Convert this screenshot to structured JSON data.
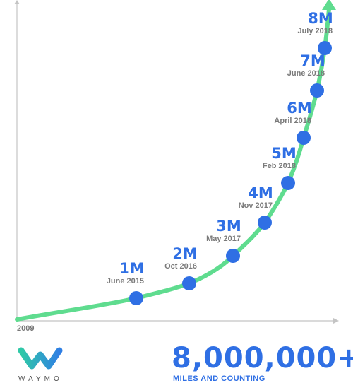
{
  "chart_data": {
    "type": "line",
    "x_origin_label": "2009",
    "points": [
      {
        "value_label": "1M",
        "date": "June 2015",
        "miles_millions": 1
      },
      {
        "value_label": "2M",
        "date": "Oct 2016",
        "miles_millions": 2
      },
      {
        "value_label": "3M",
        "date": "May 2017",
        "miles_millions": 3
      },
      {
        "value_label": "4M",
        "date": "Nov 2017",
        "miles_millions": 4
      },
      {
        "value_label": "5M",
        "date": "Feb 2018",
        "miles_millions": 5
      },
      {
        "value_label": "6M",
        "date": "April 2018",
        "miles_millions": 6
      },
      {
        "value_label": "7M",
        "date": "June 2018",
        "miles_millions": 7
      },
      {
        "value_label": "8M",
        "date": "July 2018",
        "miles_millions": 8
      }
    ],
    "line_color": "#5fdc8f",
    "marker_color": "#2f6fe4",
    "value_color": "#2f6fe4",
    "date_color": "#7a7a7a",
    "grid": false
  },
  "summary": {
    "total": "8,000,000+",
    "tagline": "MILES AND COUNTING"
  },
  "brand": {
    "name": "WAYMO"
  }
}
